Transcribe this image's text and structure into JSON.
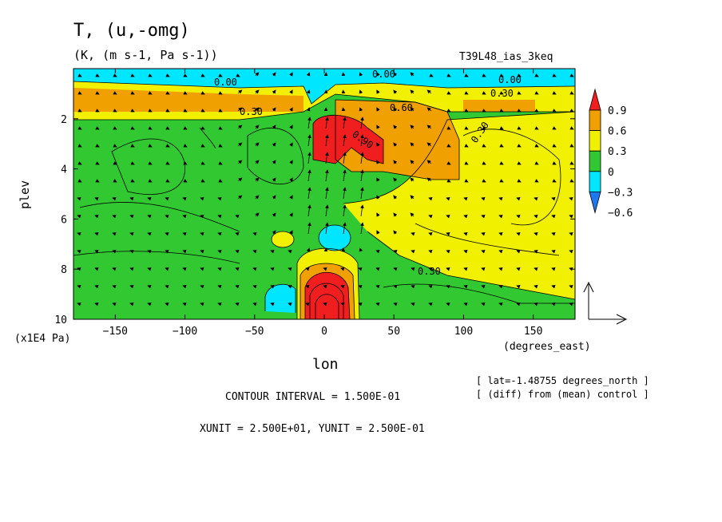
{
  "header": {
    "title": "T, (u,-omg)",
    "units": "(K, (m s-1, Pa s-1))",
    "experiment": "T39L48_ias_3keq"
  },
  "footer": {
    "lat_info": "[ lat=-1.48755 degrees_north ]",
    "diff_info": "[ (diff) from (mean) control ]",
    "contour_interval": "CONTOUR INTERVAL = 1.500E-01",
    "vector_units": "XUNIT = 2.500E+01, YUNIT = 2.500E-01"
  },
  "chart_data": {
    "type": "heatmap",
    "title": "T, (u,-omg)",
    "subtitle": "(K, (m s-1, Pa s-1))",
    "xlabel": "lon",
    "xunit": "(degrees_east)",
    "ylabel": "plev",
    "yunit": "(x1E4 Pa)",
    "xlim": [
      -180,
      180
    ],
    "ylim": [
      10,
      0
    ],
    "xticks": [
      -150,
      -100,
      -50,
      0,
      50,
      100,
      150
    ],
    "yticks": [
      2,
      4,
      6,
      8,
      10
    ],
    "colorbar": {
      "levels": [
        -0.6,
        -0.3,
        0,
        0.3,
        0.6,
        0.9
      ],
      "labels": [
        "0.9",
        "0.6",
        "0.3",
        "0",
        "-0.3",
        "-0.6"
      ],
      "colors": [
        "#1e78f0",
        "#00e6ff",
        "#32c832",
        "#f0f000",
        "#f0a000",
        "#f01e1e"
      ]
    },
    "contour_labels": [
      "0.00",
      "0.30",
      "0.60",
      "0.90",
      "0.00",
      "0.30",
      "0.30",
      "0.00",
      "0.30"
    ],
    "features": [
      {
        "name": "warm anomaly near tropopause",
        "lon_range": [
          -5,
          40
        ],
        "plev_range": [
          1.5,
          4
        ],
        "max_value": 0.9
      },
      {
        "name": "warm anomaly surface",
        "lon_range": [
          -15,
          15
        ],
        "plev_range": [
          7.5,
          10
        ],
        "max_value": 0.9
      },
      {
        "name": "cold anomaly",
        "lon": 5,
        "plev": 7,
        "value": -0.3
      },
      {
        "name": "cold anomaly",
        "lon": -35,
        "plev": 9.3,
        "value": -0.3
      },
      {
        "name": "stratospheric cold layer",
        "lon_range": [
          -180,
          180
        ],
        "plev_range": [
          0,
          0.8
        ],
        "value": -0.3
      }
    ],
    "grid": false,
    "legend": "right"
  }
}
